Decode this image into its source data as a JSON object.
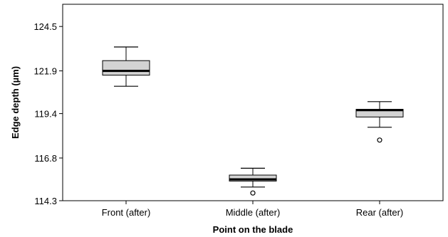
{
  "chart_data": {
    "type": "boxplot",
    "xlabel": "Point on the blade",
    "ylabel": "Edge depth (µm)",
    "ylim": [
      114.3,
      125.8
    ],
    "yticks": [
      114.3,
      116.8,
      119.4,
      121.9,
      124.5
    ],
    "ytick_labels": [
      "114.3",
      "116.8",
      "119.4",
      "121.9",
      "124.5"
    ],
    "categories": [
      "Front (after)",
      "Middle (after)",
      "Rear (after)"
    ],
    "boxes": [
      {
        "category": "Front (after)",
        "whisker_low": 121.0,
        "q1": 121.65,
        "median": 121.9,
        "q3": 122.5,
        "whisker_high": 123.3,
        "outliers": []
      },
      {
        "category": "Middle (after)",
        "whisker_low": 115.1,
        "q1": 115.45,
        "median": 115.55,
        "q3": 115.8,
        "whisker_high": 116.2,
        "outliers": [
          114.75
        ]
      },
      {
        "category": "Rear (after)",
        "whisker_low": 118.6,
        "q1": 119.2,
        "median": 119.6,
        "q3": 119.65,
        "whisker_high": 120.1,
        "outliers": [
          117.85
        ]
      }
    ],
    "grid": false,
    "colors": {
      "box_fill": "#d3d3d3",
      "stroke": "#000000",
      "median": "#000000",
      "background": "#ffffff"
    }
  }
}
